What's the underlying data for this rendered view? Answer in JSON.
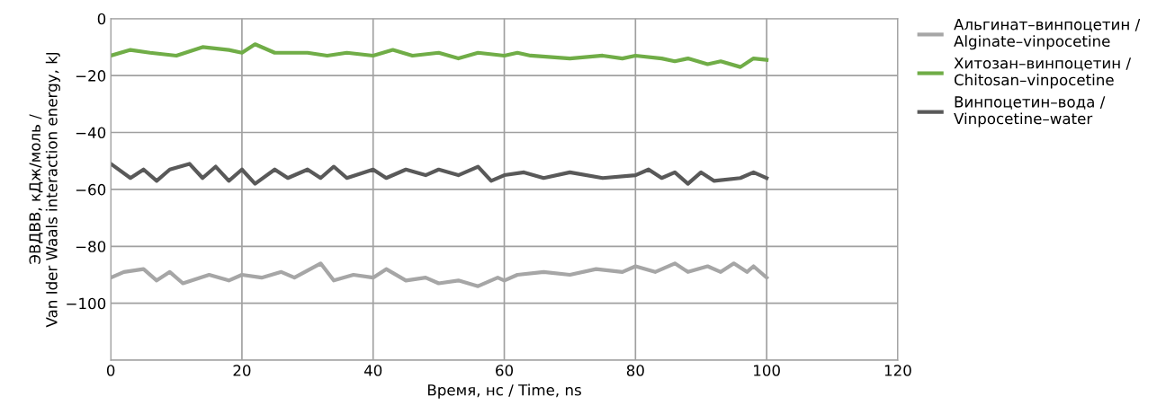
{
  "chart_data": {
    "type": "line",
    "xlabel": "Время, нс / Time, ns",
    "ylabel": "ЭВДВВ, кДж/моль /\nVan Ider Waals interaction energy, kJ",
    "xlim": [
      0,
      120
    ],
    "xticks": [
      0,
      20,
      40,
      60,
      80,
      100,
      120
    ],
    "ylim": [
      -120,
      0
    ],
    "yticks": [
      {
        "value": -120,
        "label": null
      },
      {
        "value": -100,
        "label": "−100"
      },
      {
        "value": -80,
        "label": "−80"
      },
      {
        "value": -60,
        "label": "−60"
      },
      {
        "value": -40,
        "label": "−40"
      },
      {
        "value": -20,
        "label": "−20"
      },
      0
    ],
    "grid": true,
    "legend": "right",
    "marker": "none",
    "line_style": "solid",
    "series": [
      {
        "name": "Альгинат–винпоцетин /\nAlginate–vinpocetine",
        "color": "#a6a6a6",
        "x": [
          0,
          2,
          5,
          7,
          9,
          11,
          15,
          18,
          20,
          23,
          26,
          28,
          32,
          34,
          37,
          40,
          42,
          45,
          48,
          50,
          53,
          56,
          59,
          60,
          62,
          66,
          70,
          74,
          78,
          80,
          83,
          86,
          88,
          91,
          93,
          95,
          97,
          98,
          100
        ],
        "values": [
          -91,
          -89,
          -88,
          -92,
          -89,
          -93,
          -90,
          -92,
          -90,
          -91,
          -89,
          -91,
          -86,
          -92,
          -90,
          -91,
          -88,
          -92,
          -91,
          -93,
          -92,
          -94,
          -91,
          -92,
          -90,
          -89,
          -90,
          -88,
          -89,
          -87,
          -89,
          -86,
          -89,
          -87,
          -89,
          -86,
          -89,
          -87,
          -91
        ]
      },
      {
        "name": "Хитозан–винпоцетин /\nChitosan–vinpocetine",
        "color": "#70ad47",
        "x": [
          0,
          3,
          6,
          10,
          14,
          18,
          20,
          22,
          25,
          30,
          33,
          36,
          40,
          43,
          46,
          50,
          53,
          56,
          60,
          62,
          64,
          70,
          75,
          78,
          80,
          84,
          86,
          88,
          91,
          93,
          96,
          98,
          100
        ],
        "values": [
          -13,
          -11,
          -12,
          -13,
          -10,
          -11,
          -12,
          -9,
          -12,
          -12,
          -13,
          -12,
          -13,
          -11,
          -13,
          -12,
          -14,
          -12,
          -13,
          -12,
          -13,
          -14,
          -13,
          -14,
          -13,
          -14,
          -15,
          -14,
          -16,
          -15,
          -17,
          -14,
          -14.5
        ]
      },
      {
        "name": "Винпоцетин–вода /\nVinpocetine–water",
        "color": "#595959",
        "x": [
          0,
          3,
          5,
          7,
          9,
          12,
          14,
          16,
          18,
          20,
          22,
          25,
          27,
          30,
          32,
          34,
          36,
          40,
          42,
          45,
          48,
          50,
          53,
          56,
          58,
          60,
          63,
          66,
          70,
          75,
          80,
          82,
          84,
          86,
          88,
          90,
          92,
          96,
          98,
          100
        ],
        "values": [
          -51,
          -56,
          -53,
          -57,
          -53,
          -51,
          -56,
          -52,
          -57,
          -53,
          -58,
          -53,
          -56,
          -53,
          -56,
          -52,
          -56,
          -53,
          -56,
          -53,
          -55,
          -53,
          -55,
          -52,
          -57,
          -55,
          -54,
          -56,
          -54,
          -56,
          -55,
          -53,
          -56,
          -54,
          -58,
          -54,
          -57,
          -56,
          -54,
          -56
        ]
      }
    ]
  }
}
